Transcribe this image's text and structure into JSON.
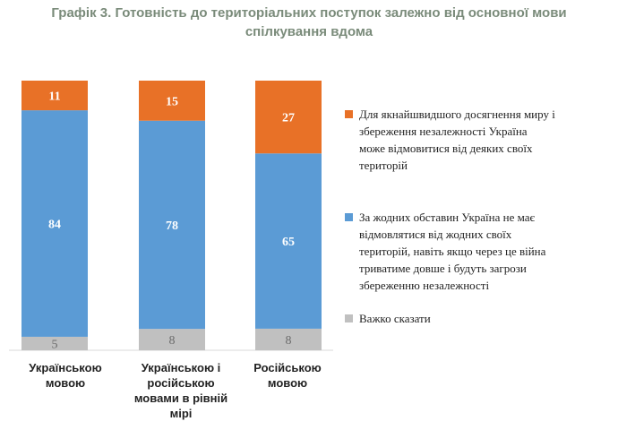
{
  "title_lines": [
    "Графік 3. Готовність до територіальних поступок залежно від основної мови",
    "спілкування вдома"
  ],
  "chart_data": {
    "type": "bar",
    "stacked": true,
    "title": "Графік 3. Готовність до територіальних поступок залежно від основної мови спілкування вдома",
    "categories": [
      "Українською\nмовою",
      "Українською і\nросійською\nмовами в рівній\nмірі",
      "Російською\nмовою"
    ],
    "series": [
      {
        "name": "Важко сказати",
        "color": "#c0c0c0",
        "label_color": "#6b6b6b",
        "values": [
          5,
          8,
          8
        ]
      },
      {
        "name": "За жодних обставин Україна не має\nвідмовлятися від жодних своїх\nтериторій, навіть якщо через це війна\nтриватиме довше і будуть загрози\nзбереженню незалежності",
        "color": "#5b9bd5",
        "label_color": "#ffffff",
        "values": [
          84,
          78,
          65
        ]
      },
      {
        "name": "Для якнайшвидшого досягнення миру і\nзбереження незалежності Україна\nможе відмовитися від деяких своїх\nтериторій",
        "color": "#e87127",
        "label_color": "#ffffff",
        "values": [
          11,
          15,
          27
        ]
      }
    ],
    "legend_order": [
      2,
      1,
      0
    ],
    "legend_position": "right",
    "ylim": [
      0,
      100
    ],
    "grid": false
  }
}
